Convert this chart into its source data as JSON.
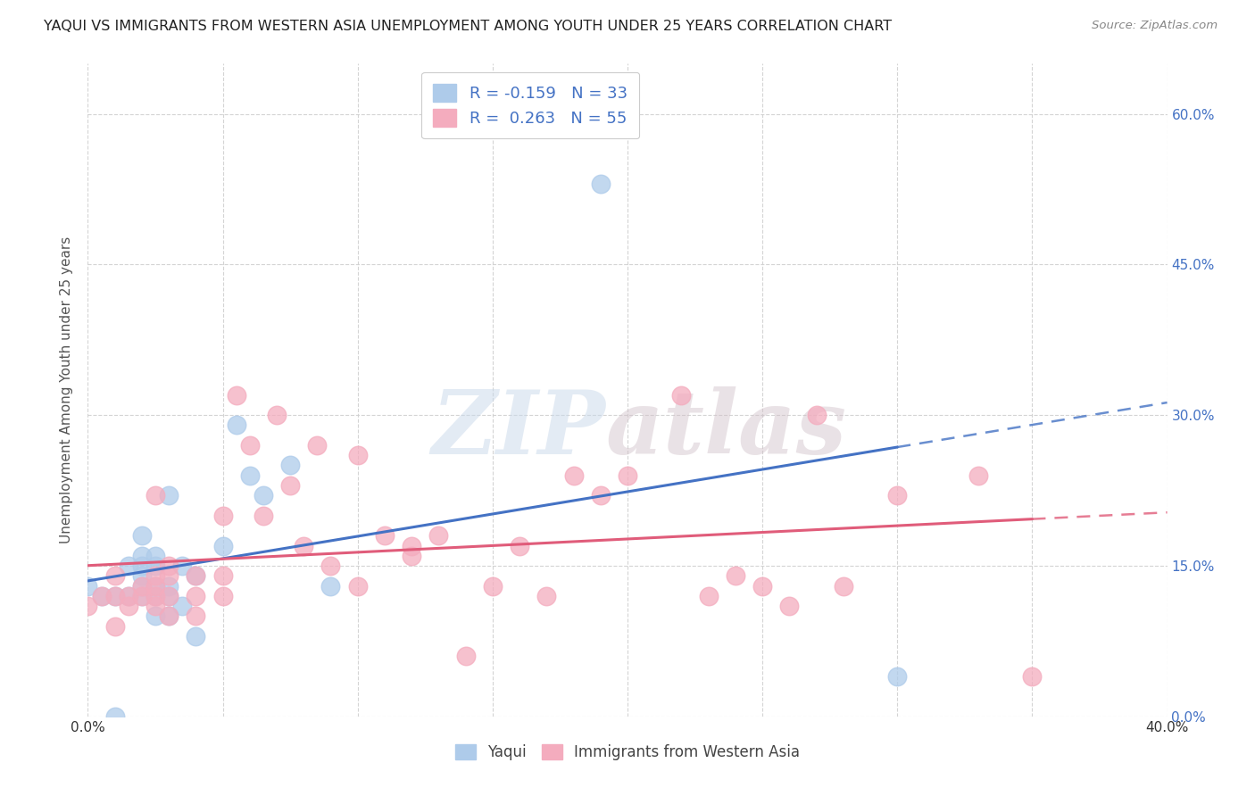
{
  "title": "YAQUI VS IMMIGRANTS FROM WESTERN ASIA UNEMPLOYMENT AMONG YOUTH UNDER 25 YEARS CORRELATION CHART",
  "source": "Source: ZipAtlas.com",
  "ylabel": "Unemployment Among Youth under 25 years",
  "xmin": 0.0,
  "xmax": 0.4,
  "ymin": 0.0,
  "ymax": 0.65,
  "xticks": [
    0.0,
    0.05,
    0.1,
    0.15,
    0.2,
    0.25,
    0.3,
    0.35,
    0.4
  ],
  "yticks": [
    0.0,
    0.15,
    0.3,
    0.45,
    0.6
  ],
  "series": [
    {
      "name": "Yaqui",
      "color": "#aecbea",
      "line_color": "#4472c4",
      "R": -0.159,
      "N": 33,
      "x": [
        0.0,
        0.005,
        0.01,
        0.01,
        0.015,
        0.015,
        0.02,
        0.02,
        0.02,
        0.02,
        0.02,
        0.02,
        0.025,
        0.025,
        0.025,
        0.025,
        0.025,
        0.03,
        0.03,
        0.03,
        0.03,
        0.035,
        0.035,
        0.04,
        0.04,
        0.05,
        0.055,
        0.06,
        0.065,
        0.075,
        0.09,
        0.19,
        0.3
      ],
      "y": [
        0.13,
        0.12,
        0.0,
        0.12,
        0.12,
        0.15,
        0.12,
        0.13,
        0.14,
        0.15,
        0.16,
        0.18,
        0.1,
        0.12,
        0.13,
        0.15,
        0.16,
        0.1,
        0.12,
        0.13,
        0.22,
        0.11,
        0.15,
        0.08,
        0.14,
        0.17,
        0.29,
        0.24,
        0.22,
        0.25,
        0.13,
        0.53,
        0.04
      ]
    },
    {
      "name": "Immigrants from Western Asia",
      "color": "#f4acbe",
      "line_color": "#e05c7a",
      "R": 0.263,
      "N": 55,
      "x": [
        0.0,
        0.005,
        0.01,
        0.01,
        0.01,
        0.015,
        0.015,
        0.02,
        0.02,
        0.025,
        0.025,
        0.025,
        0.025,
        0.025,
        0.03,
        0.03,
        0.03,
        0.03,
        0.04,
        0.04,
        0.04,
        0.05,
        0.05,
        0.05,
        0.055,
        0.06,
        0.065,
        0.07,
        0.075,
        0.08,
        0.085,
        0.09,
        0.1,
        0.1,
        0.11,
        0.12,
        0.12,
        0.13,
        0.14,
        0.15,
        0.16,
        0.17,
        0.18,
        0.19,
        0.2,
        0.22,
        0.23,
        0.24,
        0.25,
        0.26,
        0.27,
        0.28,
        0.3,
        0.33,
        0.35
      ],
      "y": [
        0.11,
        0.12,
        0.09,
        0.12,
        0.14,
        0.11,
        0.12,
        0.12,
        0.13,
        0.11,
        0.12,
        0.13,
        0.14,
        0.22,
        0.1,
        0.12,
        0.14,
        0.15,
        0.1,
        0.12,
        0.14,
        0.12,
        0.14,
        0.2,
        0.32,
        0.27,
        0.2,
        0.3,
        0.23,
        0.17,
        0.27,
        0.15,
        0.13,
        0.26,
        0.18,
        0.16,
        0.17,
        0.18,
        0.06,
        0.13,
        0.17,
        0.12,
        0.24,
        0.22,
        0.24,
        0.32,
        0.12,
        0.14,
        0.13,
        0.11,
        0.3,
        0.13,
        0.22,
        0.24,
        0.04
      ]
    }
  ],
  "watermark_zip": "ZIP",
  "watermark_atlas": "atlas",
  "background_color": "#ffffff",
  "grid_color": "#d0d0d0"
}
